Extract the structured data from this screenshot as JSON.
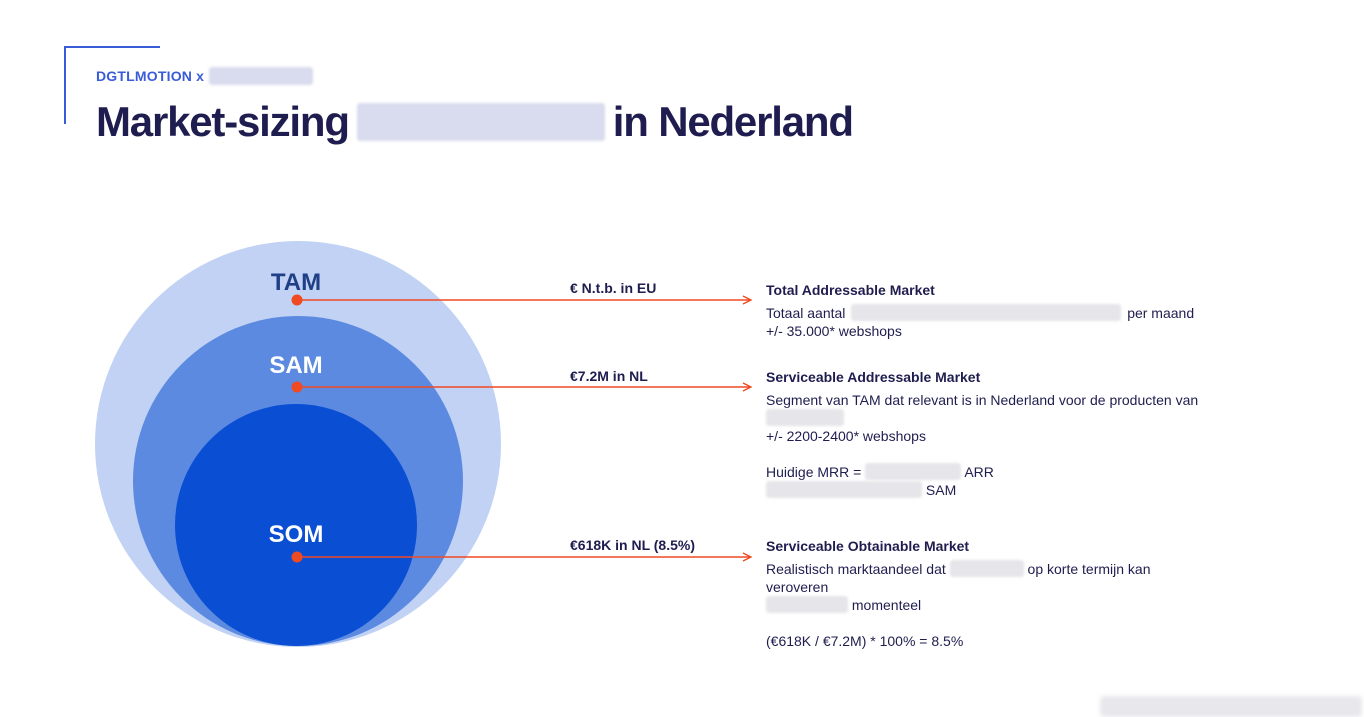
{
  "header": {
    "brand": "DGTLMOTION x",
    "title_prefix": "Market-sizing",
    "title_suffix": "in Nederland"
  },
  "colors": {
    "tam_circle": "#c1d2f4",
    "sam_circle": "#5b8ae0",
    "som_circle": "#0a4ed4",
    "tam_text": "#1f3f86",
    "dot": "#f04a23",
    "text_dark": "#1f1d4f",
    "brand_blue": "#3a5bd9"
  },
  "circles": {
    "tam_label": "TAM",
    "sam_label": "SAM",
    "som_label": "SOM"
  },
  "values": {
    "tam": "€ N.t.b. in EU",
    "sam": "€7.2M in NL",
    "som": "€618K in NL (8.5%)"
  },
  "tam": {
    "heading": "Total Addressable Market",
    "line1_prefix": "Totaal aantal",
    "line1_suffix": "per maand",
    "line2": "+/- 35.000* webshops"
  },
  "sam": {
    "heading": "Serviceable Addressable Market",
    "line1": "Segment van TAM dat relevant is in Nederland voor de producten van",
    "line3": "+/- 2200-2400* webshops",
    "mrr_prefix": "Huidige MRR =",
    "mrr_suffix": "ARR",
    "sam_suffix": "SAM"
  },
  "som": {
    "heading": "Serviceable Obtainable Market",
    "line1_prefix": "Realistisch marktaandeel dat",
    "line1_suffix": "op korte termijn kan",
    "line2": "veroveren",
    "line3_suffix": "momenteel",
    "formula": "(€618K / €7.2M) * 100% = 8.5%"
  }
}
